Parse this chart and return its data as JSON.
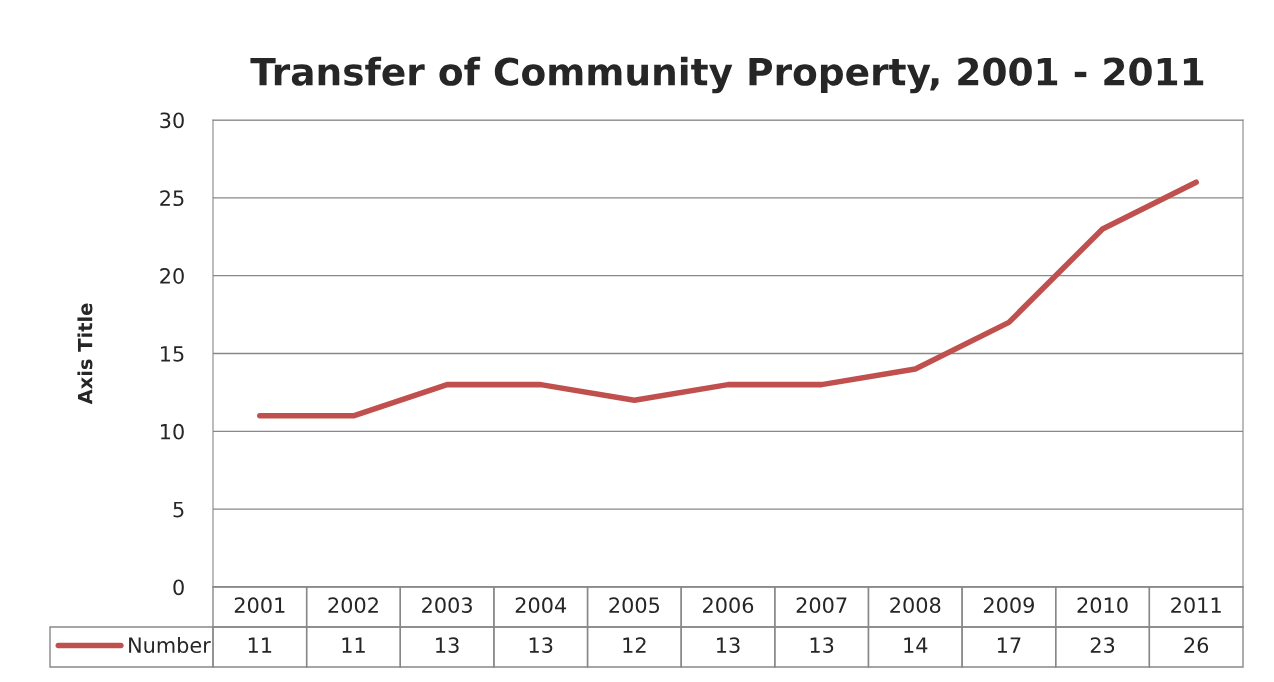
{
  "chart_data": {
    "type": "line",
    "title": "Transfer of Community Property, 2001 - 2011",
    "ylabel": "Axis Title",
    "categories": [
      "2001",
      "2002",
      "2003",
      "2004",
      "2005",
      "2006",
      "2007",
      "2008",
      "2009",
      "2010",
      "2011"
    ],
    "series": [
      {
        "name": "Number",
        "color": "#c0504d",
        "values": [
          11,
          11,
          13,
          13,
          12,
          13,
          13,
          14,
          17,
          23,
          26
        ]
      }
    ],
    "ylim": [
      0,
      30
    ],
    "yticks": [
      0,
      5,
      10,
      15,
      20,
      25,
      30
    ],
    "grid": "y",
    "legend": "bottom",
    "data_labels": true,
    "marker": "none",
    "line_style": "solid"
  }
}
